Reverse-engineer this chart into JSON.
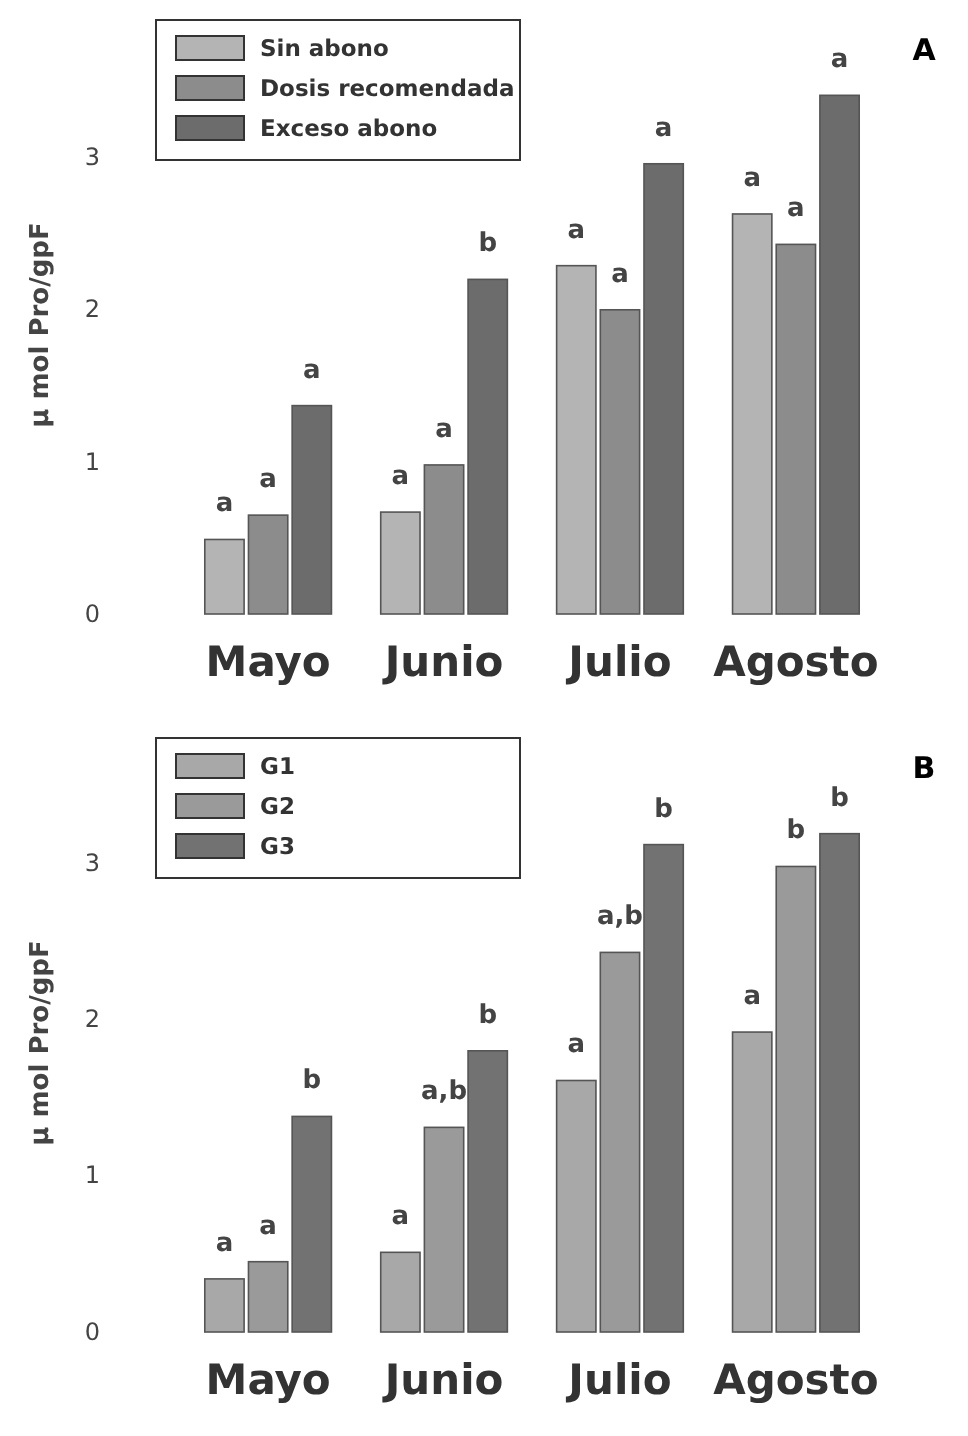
{
  "chart_data": [
    {
      "type": "bar",
      "ylabel": "μ mol Pro/gpF",
      "categories": [
        "Mayo",
        "Junio",
        "Julio",
        "Agosto"
      ],
      "ylim": [
        0,
        3.8
      ],
      "yticks": [
        0,
        1,
        2,
        3
      ],
      "legend": "top left",
      "grid": false,
      "series": [
        {
          "name": "Sin abono",
          "color": "#b4b4b4",
          "values": [
            0.49,
            0.67,
            2.29,
            2.63
          ],
          "value_labels": [
            "a",
            "a",
            "a",
            "a"
          ]
        },
        {
          "name": "Dosis recomendada",
          "color": "#8c8c8c",
          "values": [
            0.65,
            0.98,
            2.0,
            2.43
          ],
          "value_labels": [
            "a",
            "a",
            "a",
            "a"
          ]
        },
        {
          "name": "Exceso abono",
          "color": "#6c6c6c",
          "values": [
            1.37,
            2.2,
            2.96,
            3.41
          ],
          "value_labels": [
            "a",
            "b",
            "a",
            "a"
          ]
        }
      ],
      "annotations": [
        "A"
      ]
    },
    {
      "type": "bar",
      "ylabel": "μ mol Pro/gpF",
      "categories": [
        "Mayo",
        "Junio",
        "Julio",
        "Agosto"
      ],
      "ylim": [
        0,
        3.7
      ],
      "yticks": [
        0,
        1,
        2,
        3
      ],
      "legend": "top left",
      "grid": false,
      "series": [
        {
          "name": "G1",
          "color": "#a8a8a8",
          "values": [
            0.34,
            0.51,
            1.61,
            1.92
          ],
          "value_labels": [
            "a",
            "a",
            "a",
            "a"
          ]
        },
        {
          "name": "G2",
          "color": "#9a9a9a",
          "values": [
            0.45,
            1.31,
            2.43,
            2.98
          ],
          "value_labels": [
            "a",
            "a,b",
            "a,b",
            "b"
          ]
        },
        {
          "name": "G3",
          "color": "#727272",
          "values": [
            1.38,
            1.8,
            3.12,
            3.19
          ],
          "value_labels": [
            "b",
            "b",
            "b",
            "b"
          ]
        }
      ],
      "annotations": [
        "B"
      ]
    }
  ]
}
